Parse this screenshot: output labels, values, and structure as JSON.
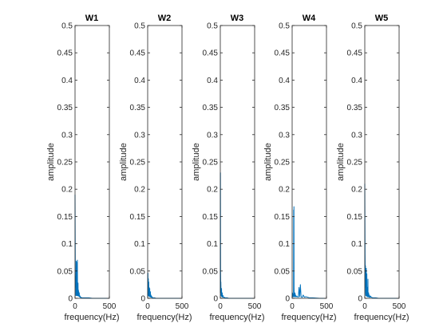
{
  "chart_data": [
    {
      "type": "line",
      "title": "W1",
      "xlabel": "frequency(Hz)",
      "ylabel": "amplitude",
      "xlim": [
        0,
        500
      ],
      "ylim": [
        0,
        0.5
      ],
      "xticks": [
        "0",
        "500"
      ],
      "yticks": [
        "0",
        "0.05",
        "0.1",
        "0.15",
        "0.2",
        "0.25",
        "0.3",
        "0.35",
        "0.4",
        "0.45",
        "0.5"
      ],
      "grid": false,
      "color": "#0072BD",
      "series": [
        {
          "x": [
            0,
            2,
            4,
            6,
            8,
            10,
            12,
            14,
            16,
            18,
            20,
            22,
            24,
            26,
            28,
            30,
            32,
            34,
            36,
            38,
            40,
            42,
            44,
            46,
            48,
            50,
            52,
            54,
            56,
            58,
            60,
            62,
            64,
            66,
            68,
            70,
            72,
            74,
            76,
            78,
            80,
            85,
            90,
            95,
            100,
            110,
            120,
            130,
            140,
            150,
            170,
            200,
            250,
            300,
            350,
            400,
            450,
            500
          ],
          "y": [
            0.19,
            0.12,
            0.06,
            0.02,
            0.04,
            0.01,
            0.005,
            0.02,
            0.01,
            0.068,
            0.03,
            0.01,
            0.005,
            0.066,
            0.02,
            0.01,
            0.005,
            0.07,
            0.03,
            0.01,
            0.005,
            0.01,
            0.028,
            0.005,
            0.004,
            0.015,
            0.006,
            0.012,
            0.004,
            0.008,
            0.006,
            0.01,
            0.004,
            0.003,
            0.005,
            0.003,
            0.002,
            0.004,
            0.002,
            0.002,
            0.002,
            0.001,
            0.002,
            0.001,
            0.001,
            0.001,
            0.001,
            0.001,
            0.001,
            0.001,
            0.001,
            0.001,
            0,
            0,
            0,
            0,
            0,
            0
          ]
        }
      ]
    },
    {
      "type": "line",
      "title": "W2",
      "xlabel": "frequency(Hz)",
      "ylabel": "amplitude",
      "xlim": [
        0,
        500
      ],
      "ylim": [
        0,
        0.5
      ],
      "xticks": [
        "0",
        "500"
      ],
      "yticks": [
        "0",
        "0.05",
        "0.1",
        "0.15",
        "0.2",
        "0.25",
        "0.3",
        "0.35",
        "0.4",
        "0.45",
        "0.5"
      ],
      "grid": false,
      "color": "#0072BD",
      "series": [
        {
          "x": [
            0,
            2,
            4,
            6,
            8,
            10,
            12,
            14,
            16,
            18,
            20,
            22,
            24,
            26,
            28,
            30,
            32,
            34,
            36,
            38,
            40,
            42,
            44,
            46,
            48,
            50,
            52,
            54,
            56,
            58,
            60,
            62,
            64,
            66,
            68,
            70,
            75,
            80,
            85,
            90,
            100,
            120,
            150,
            200,
            300,
            400,
            500
          ],
          "y": [
            0.005,
            0.01,
            0.046,
            0.01,
            0.005,
            0.036,
            0.01,
            0.004,
            0.03,
            0.008,
            0.005,
            0.02,
            0.004,
            0.012,
            0.003,
            0.018,
            0.005,
            0.01,
            0.003,
            0.006,
            0.012,
            0.003,
            0.004,
            0.002,
            0.006,
            0.002,
            0.003,
            0.002,
            0.004,
            0.002,
            0.002,
            0.003,
            0.001,
            0.002,
            0.001,
            0.001,
            0.001,
            0.001,
            0.001,
            0.001,
            0.001,
            0,
            0,
            0,
            0,
            0,
            0
          ]
        }
      ]
    },
    {
      "type": "line",
      "title": "W3",
      "xlabel": "frequency(Hz)",
      "ylabel": "amplitude",
      "xlim": [
        0,
        500
      ],
      "ylim": [
        0,
        0.5
      ],
      "xticks": [
        "0",
        "500"
      ],
      "yticks": [
        "0",
        "0.05",
        "0.1",
        "0.15",
        "0.2",
        "0.25",
        "0.3",
        "0.35",
        "0.4",
        "0.45",
        "0.5"
      ],
      "grid": false,
      "color": "#0072BD",
      "series": [
        {
          "x": [
            0,
            2,
            4,
            6,
            8,
            10,
            12,
            14,
            16,
            18,
            20,
            22,
            24,
            26,
            28,
            30,
            32,
            34,
            36,
            38,
            40,
            42,
            44,
            46,
            48,
            50,
            55,
            60,
            65,
            70,
            75,
            80,
            90,
            100,
            120,
            150,
            200,
            300,
            400,
            500
          ],
          "y": [
            0.01,
            0.23,
            0.05,
            0.02,
            0.03,
            0.016,
            0.005,
            0.01,
            0.004,
            0.018,
            0.006,
            0.003,
            0.008,
            0.004,
            0.01,
            0.003,
            0.006,
            0.002,
            0.004,
            0.003,
            0.005,
            0.002,
            0.003,
            0.002,
            0.002,
            0.002,
            0.001,
            0.002,
            0.001,
            0.001,
            0.001,
            0.001,
            0.001,
            0.001,
            0,
            0,
            0,
            0,
            0,
            0
          ]
        }
      ]
    },
    {
      "type": "line",
      "title": "W4",
      "xlabel": "frequency(Hz)",
      "ylabel": "amplitude",
      "xlim": [
        0,
        500
      ],
      "ylim": [
        0,
        0.5
      ],
      "xticks": [
        "0",
        "500"
      ],
      "yticks": [
        "0",
        "0.05",
        "0.1",
        "0.15",
        "0.2",
        "0.25",
        "0.3",
        "0.35",
        "0.4",
        "0.45",
        "0.5"
      ],
      "grid": false,
      "color": "#0072BD",
      "series": [
        {
          "x": [
            0,
            2,
            4,
            6,
            8,
            10,
            12,
            14,
            16,
            18,
            20,
            22,
            24,
            26,
            28,
            30,
            32,
            34,
            36,
            38,
            40,
            42,
            44,
            46,
            48,
            50,
            52,
            54,
            56,
            58,
            60,
            62,
            64,
            66,
            68,
            70,
            75,
            80,
            90,
            100,
            110,
            120,
            130,
            140,
            150,
            160,
            180,
            200,
            250,
            300,
            400,
            500
          ],
          "y": [
            0.002,
            0.005,
            0.01,
            0.005,
            0.003,
            0.008,
            0.004,
            0.006,
            0.003,
            0.005,
            0.003,
            0.162,
            0.01,
            0.168,
            0.02,
            0.005,
            0.003,
            0.004,
            0.003,
            0.005,
            0.004,
            0.01,
            0.003,
            0.004,
            0.003,
            0.006,
            0.003,
            0.004,
            0.003,
            0.004,
            0.003,
            0.003,
            0.003,
            0.004,
            0.003,
            0.003,
            0.003,
            0.003,
            0.002,
            0.02,
            0.003,
            0.025,
            0.003,
            0.002,
            0.002,
            0.006,
            0.002,
            0.003,
            0.001,
            0.001,
            0,
            0
          ]
        }
      ]
    },
    {
      "type": "line",
      "title": "W5",
      "xlabel": "frequency(Hz)",
      "ylabel": "amplitude",
      "xlim": [
        0,
        500
      ],
      "ylim": [
        0,
        0.5
      ],
      "xticks": [
        "0",
        "500"
      ],
      "yticks": [
        "0",
        "0.05",
        "0.1",
        "0.15",
        "0.2",
        "0.25",
        "0.3",
        "0.35",
        "0.4",
        "0.45",
        "0.5"
      ],
      "grid": false,
      "color": "#0072BD",
      "series": [
        {
          "x": [
            0,
            2,
            4,
            6,
            8,
            10,
            12,
            14,
            16,
            18,
            20,
            22,
            24,
            26,
            28,
            30,
            32,
            34,
            36,
            38,
            40,
            42,
            44,
            46,
            48,
            50,
            52,
            54,
            56,
            58,
            60,
            62,
            64,
            66,
            68,
            70,
            75,
            80,
            85,
            90,
            95,
            100,
            110,
            120,
            140,
            160,
            200,
            300,
            400,
            500
          ],
          "y": [
            0.21,
            0.14,
            0.08,
            0.05,
            0.02,
            0.06,
            0.01,
            0.005,
            0.04,
            0.01,
            0.005,
            0.055,
            0.01,
            0.004,
            0.02,
            0.045,
            0.005,
            0.01,
            0.003,
            0.02,
            0.004,
            0.005,
            0.003,
            0.035,
            0.004,
            0.003,
            0.005,
            0.003,
            0.01,
            0.003,
            0.004,
            0.002,
            0.003,
            0.002,
            0.006,
            0.002,
            0.003,
            0.002,
            0.004,
            0.002,
            0.002,
            0.002,
            0.001,
            0.001,
            0.001,
            0.001,
            0,
            0,
            0,
            0
          ]
        }
      ]
    }
  ]
}
